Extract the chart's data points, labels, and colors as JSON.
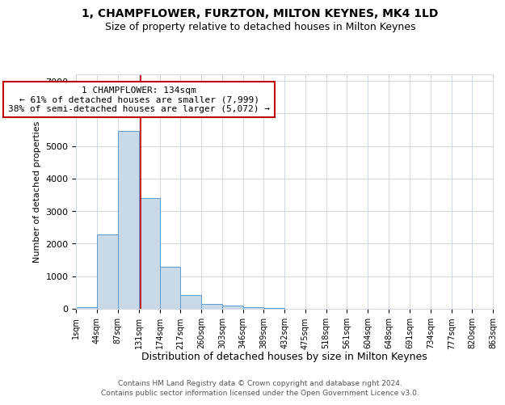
{
  "title1": "1, CHAMPFLOWER, FURZTON, MILTON KEYNES, MK4 1LD",
  "title2": "Size of property relative to detached houses in Milton Keynes",
  "xlabel": "Distribution of detached houses by size in Milton Keynes",
  "ylabel": "Number of detached properties",
  "footer1": "Contains HM Land Registry data © Crown copyright and database right 2024.",
  "footer2": "Contains public sector information licensed under the Open Government Licence v3.0.",
  "bar_edges": [
    1,
    44,
    87,
    131,
    174,
    217,
    260,
    303,
    346,
    389,
    432,
    475,
    518,
    561,
    604,
    648,
    691,
    734,
    777,
    820,
    863
  ],
  "bar_heights": [
    50,
    2280,
    5450,
    3400,
    1300,
    430,
    150,
    100,
    60,
    30,
    10,
    5,
    2,
    1,
    0,
    0,
    0,
    0,
    0,
    0
  ],
  "bar_color": "#c9d9e8",
  "bar_edgecolor": "#5b9bd5",
  "vline_x": 134,
  "vline_color": "#c00000",
  "annotation_text": "1 CHAMPFLOWER: 134sqm\n← 61% of detached houses are smaller (7,999)\n38% of semi-detached houses are larger (5,072) →",
  "annotation_box_edgecolor": "#c00000",
  "annotation_box_facecolor": "#ffffff",
  "annotation_fontsize": 8.0,
  "title1_fontsize": 10,
  "title2_fontsize": 9,
  "ylim": [
    0,
    7200
  ],
  "yticks": [
    0,
    1000,
    2000,
    3000,
    4000,
    5000,
    6000,
    7000
  ],
  "background_color": "#ffffff",
  "grid_color": "#d0d8e4",
  "ylabel_fontsize": 8,
  "xlabel_fontsize": 9,
  "xtick_fontsize": 7,
  "ytick_fontsize": 8,
  "footer_fontsize": 6.5,
  "footer_color": "#555555"
}
